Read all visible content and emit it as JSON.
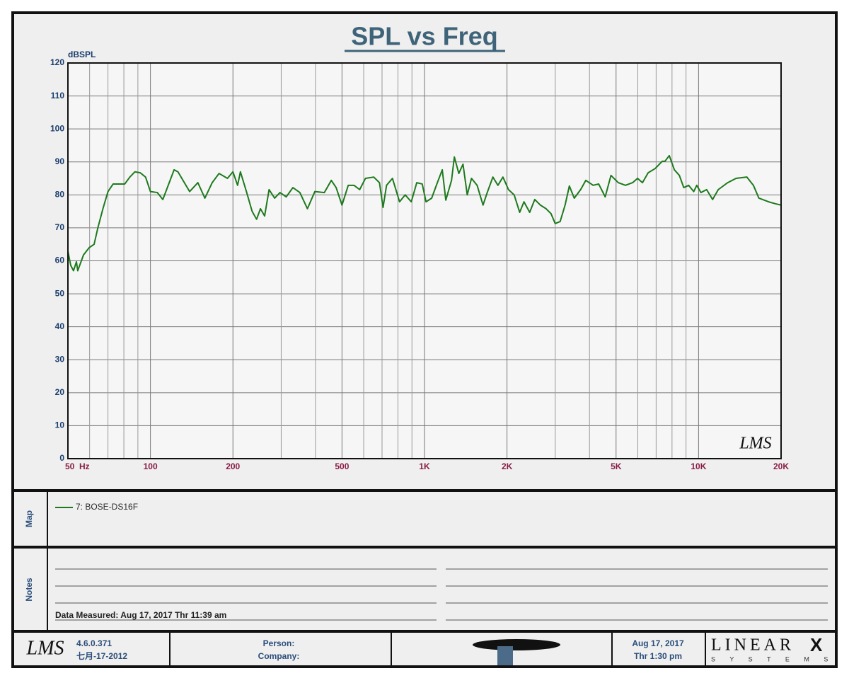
{
  "chart_data": {
    "type": "line",
    "title": "SPL vs Freq",
    "y_label": "dBSPL",
    "watermark": "LMS",
    "x_scale": "log",
    "grid": true,
    "xlim": [
      50,
      20000
    ],
    "ylim": [
      0,
      120
    ],
    "xticks": [
      {
        "value": 50,
        "label": "50  Hz"
      },
      100,
      200,
      500,
      {
        "value": 1000,
        "label": "1K"
      },
      {
        "value": 2000,
        "label": "2K"
      },
      {
        "value": 5000,
        "label": "5K"
      },
      {
        "value": 10000,
        "label": "10K"
      },
      {
        "value": 20000,
        "label": "20K"
      }
    ],
    "x_minor_grid": [
      60,
      70,
      80,
      90,
      300,
      400,
      600,
      700,
      800,
      900,
      3000,
      4000,
      6000,
      7000,
      8000,
      9000
    ],
    "yticks": [
      0,
      10,
      20,
      30,
      40,
      50,
      60,
      70,
      80,
      90,
      100,
      110,
      120
    ],
    "x": [
      50,
      51.2,
      52.4,
      53.7,
      54.3,
      57,
      59.8,
      62.3,
      64.3,
      67.1,
      70,
      73.1,
      77.7,
      80.6,
      84.1,
      87.8,
      91.8,
      96,
      100,
      106,
      111,
      122,
      126,
      139,
      149,
      158,
      168,
      178,
      191,
      200,
      208,
      213,
      224,
      235,
      244,
      252,
      261,
      271,
      284,
      297,
      313,
      331,
      351,
      374,
      398,
      431,
      457,
      476,
      500,
      527,
      553,
      580,
      609,
      653,
      685,
      706,
      727,
      764,
      811,
      850,
      895,
      937,
      981,
      1013,
      1062,
      1114,
      1161,
      1196,
      1255,
      1285,
      1334,
      1382,
      1432,
      1484,
      1556,
      1635,
      1694,
      1776,
      1853,
      1933,
      2025,
      2124,
      2225,
      2306,
      2420,
      2525,
      2647,
      2777,
      2895,
      2998,
      3125,
      3258,
      3377,
      3519,
      3713,
      3877,
      4124,
      4320,
      4564,
      4790,
      5093,
      5410,
      5745,
      5990,
      6241,
      6546,
      6949,
      7368,
      7540,
      7820,
      8160,
      8510,
      8830,
      9200,
      9600,
      9850,
      10200,
      10700,
      11250,
      11800,
      12770,
      13700,
      15000,
      15850,
      16600,
      18000,
      19100,
      20000
    ],
    "series": [
      {
        "name": "7: BOSE-DS16F",
        "color": "#1e7a1e",
        "values": [
          62.9,
          58.6,
          57,
          59.7,
          57,
          61.8,
          64,
          65,
          70,
          75.8,
          81,
          83.3,
          83.3,
          83.3,
          85.4,
          87,
          86.7,
          85.4,
          81,
          80.7,
          78.6,
          87.6,
          87,
          81,
          83.7,
          79,
          83.7,
          86.5,
          85,
          87,
          82.9,
          87,
          81,
          75,
          72.6,
          75.8,
          73.6,
          81.6,
          79,
          80.7,
          79.4,
          82.2,
          80.7,
          75.8,
          81,
          80.7,
          84.4,
          82.2,
          76.9,
          82.9,
          82.9,
          81.6,
          85,
          85.4,
          83.7,
          76.2,
          82.9,
          85,
          77.9,
          80,
          77.9,
          83.7,
          83.3,
          77.9,
          79,
          83.7,
          87.6,
          78.4,
          84.4,
          91.5,
          86.5,
          89.3,
          80,
          85,
          82.9,
          76.9,
          80.7,
          85.4,
          82.9,
          85.4,
          81.6,
          80,
          74.7,
          77.9,
          74.7,
          78.6,
          76.9,
          75.8,
          74.3,
          71.3,
          71.9,
          76.9,
          82.7,
          79,
          81.6,
          84.4,
          82.9,
          83.3,
          79.4,
          85.9,
          83.7,
          82.9,
          83.7,
          85,
          83.7,
          86.7,
          88,
          90.2,
          90.2,
          91.9,
          87.6,
          85.9,
          82.2,
          82.9,
          81,
          82.9,
          80.7,
          81.6,
          78.6,
          81.6,
          83.7,
          85,
          85.4,
          82.9,
          79,
          77.9,
          77.3,
          76.9
        ]
      }
    ]
  },
  "map": {
    "label": "Map"
  },
  "notes": {
    "label": "Notes",
    "data_measured": "Data Measured: Aug 17, 2017  Thr 11:39 am"
  },
  "footer": {
    "logo": "LMS",
    "version": "4.6.0.371",
    "build_date": "七月-17-2012",
    "person": "Person:",
    "company": "Company:",
    "date": "Aug 17, 2017",
    "time": "Thr  1:30 pm",
    "brand": "LINEAR",
    "brand_x": "X",
    "brand_sub": "S Y S T E M S"
  }
}
